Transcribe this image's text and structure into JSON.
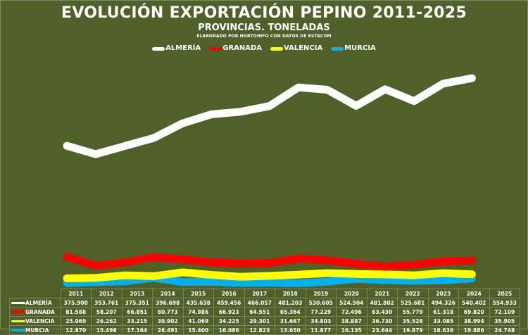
{
  "chart_data": {
    "type": "line",
    "title": "EVOLUCIÓN EXPORTACIÓN PEPINO 2011-2025",
    "subtitle": "PROVINCIAS. TONELADAS",
    "source": "ELABORADO POR HORTOINFO CON DATOS DE ESTACOM",
    "xlabel": "",
    "ylabel": "",
    "ylim": [
      0,
      600000
    ],
    "grid": false,
    "legend_position": "top-center",
    "categories": [
      "2011",
      "2012",
      "2013",
      "2014",
      "2015",
      "2016",
      "2017",
      "2018",
      "2019",
      "2020",
      "2021",
      "2022",
      "2023",
      "2024",
      "2025"
    ],
    "series": [
      {
        "name": "ALMERÍA",
        "color": "#ffffff",
        "values": [
          375900,
          353761,
          375351,
          396698,
          435638,
          459456,
          466057,
          481203,
          530605,
          524504,
          481802,
          525681,
          494326,
          540402,
          554933
        ],
        "labels": [
          "375.900",
          "353.761",
          "375.351",
          "396.698",
          "435.638",
          "459.456",
          "466.057",
          "481.203",
          "530.605",
          "524.504",
          "481.802",
          "525.681",
          "494.326",
          "540.402",
          "554.933"
        ]
      },
      {
        "name": "GRANADA",
        "color": "#ff0000",
        "values": [
          81588,
          58207,
          66851,
          80773,
          74986,
          66923,
          64551,
          65364,
          77229,
          72496,
          63430,
          55779,
          61318,
          69820,
          72109
        ],
        "labels": [
          "81.588",
          "58.207",
          "66.851",
          "80.773",
          "74.986",
          "66.923",
          "64.551",
          "65.364",
          "77.229",
          "72.496",
          "63.430",
          "55.779",
          "61.318",
          "69.820",
          "72.109"
        ]
      },
      {
        "name": "VALENCIA",
        "color": "#ffff00",
        "values": [
          25069,
          26262,
          33215,
          30902,
          41069,
          34225,
          29301,
          31667,
          34803,
          38887,
          36730,
          35528,
          33085,
          38994,
          35905
        ],
        "labels": [
          "25.069",
          "26.262",
          "33.215",
          "30.902",
          "41.069",
          "34.225",
          "29.301",
          "31.667",
          "34.803",
          "38.887",
          "36.730",
          "35.528",
          "33.085",
          "38.994",
          "35.905"
        ]
      },
      {
        "name": "MURCIA",
        "color": "#00b0f0",
        "values": [
          12870,
          15498,
          17164,
          26491,
          15400,
          16086,
          12823,
          13650,
          11877,
          16135,
          23644,
          19879,
          18636,
          19886,
          24748
        ],
        "labels": [
          "12.870",
          "15.498",
          "17.164",
          "26.491",
          "15.400",
          "16.086",
          "12.823",
          "13.650",
          "11.877",
          "16.135",
          "23.644",
          "19.879",
          "18.636",
          "19.886",
          "24.748"
        ]
      }
    ]
  }
}
